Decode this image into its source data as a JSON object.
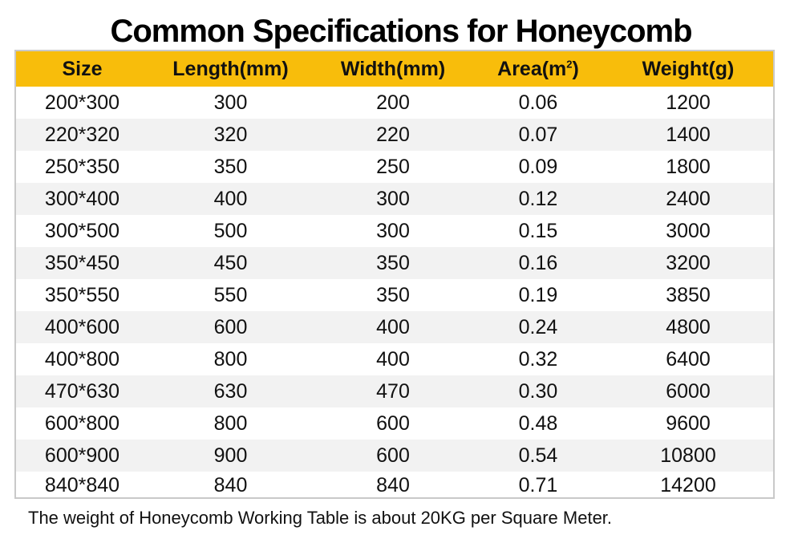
{
  "title": "Common Specifications for Honeycomb",
  "colors": {
    "header_bg": "#f8bd0b",
    "alt_row_bg": "#f2f2f2",
    "border": "#c9c9c9"
  },
  "table": {
    "headers": {
      "size": "Size",
      "length": "Length(mm)",
      "width": "Width(mm)",
      "area": "Area(m",
      "area_sup": "2",
      "area_close": ")",
      "weight": "Weight(g)"
    },
    "rows": [
      {
        "size": "200*300",
        "length": "300",
        "width": "200",
        "area": "0.06",
        "weight": "1200"
      },
      {
        "size": "220*320",
        "length": "320",
        "width": "220",
        "area": "0.07",
        "weight": "1400"
      },
      {
        "size": "250*350",
        "length": "350",
        "width": "250",
        "area": "0.09",
        "weight": "1800"
      },
      {
        "size": "300*400",
        "length": "400",
        "width": "300",
        "area": "0.12",
        "weight": "2400"
      },
      {
        "size": "300*500",
        "length": "500",
        "width": "300",
        "area": "0.15",
        "weight": "3000"
      },
      {
        "size": "350*450",
        "length": "450",
        "width": "350",
        "area": "0.16",
        "weight": "3200"
      },
      {
        "size": "350*550",
        "length": "550",
        "width": "350",
        "area": "0.19",
        "weight": "3850"
      },
      {
        "size": "400*600",
        "length": "600",
        "width": "400",
        "area": "0.24",
        "weight": "4800"
      },
      {
        "size": "400*800",
        "length": "800",
        "width": "400",
        "area": "0.32",
        "weight": "6400"
      },
      {
        "size": "470*630",
        "length": "630",
        "width": "470",
        "area": "0.30",
        "weight": "6000"
      },
      {
        "size": "600*800",
        "length": "800",
        "width": "600",
        "area": "0.48",
        "weight": "9600"
      },
      {
        "size": "600*900",
        "length": "900",
        "width": "600",
        "area": "0.54",
        "weight": "10800"
      },
      {
        "size": "840*840",
        "length": "840",
        "width": "840",
        "area": "0.71",
        "weight": "14200"
      }
    ]
  },
  "footnote": "The weight of Honeycomb Working Table is about 20KG per Square Meter."
}
